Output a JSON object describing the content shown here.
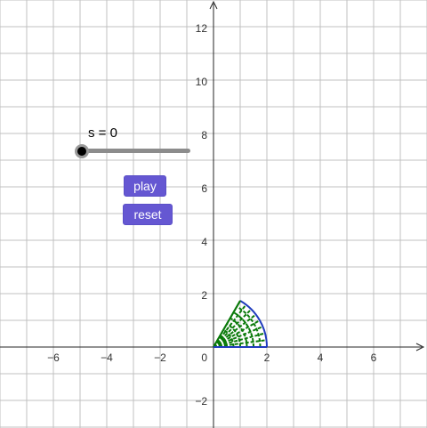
{
  "graph": {
    "x_ticks": [
      "−6",
      "−4",
      "−2",
      "2",
      "4",
      "6"
    ],
    "y_ticks": [
      "12",
      "10",
      "8",
      "6",
      "4",
      "2",
      "−2"
    ],
    "origin_label": "0",
    "gridline_color": "#c0c0c0",
    "axis_color": "#252525"
  },
  "slider": {
    "label": "s = 0",
    "value": 0
  },
  "buttons": {
    "play_label": "play",
    "reset_label": "reset",
    "color": "#6557d2"
  },
  "shape": {
    "outer_color": "#1f3bbd",
    "mesh_color": "#0a7a0a",
    "radius": 2,
    "angle_degrees": 60
  }
}
